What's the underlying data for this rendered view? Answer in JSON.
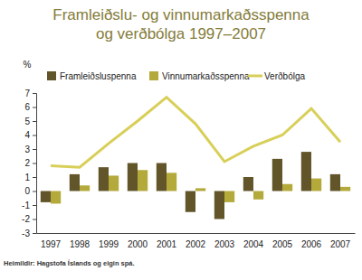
{
  "chart_data": {
    "type": "bar",
    "title": "Framleiðslu- og vinnumarkaðsspenna\nog verðbólga 1997–2007",
    "y_label": "%",
    "source": "Heimildir: Hagstofa Íslands og eigin spá.",
    "categories": [
      "1997",
      "1998",
      "1999",
      "2000",
      "2001",
      "2002",
      "2003",
      "2004",
      "2005",
      "2006",
      "2007"
    ],
    "series": [
      {
        "name": "Framleiðsluspenna",
        "type": "bar",
        "color": "#62552a",
        "values": [
          -0.8,
          1.2,
          1.7,
          2.0,
          2.0,
          -1.5,
          -2.0,
          1.0,
          2.3,
          2.8,
          1.2
        ]
      },
      {
        "name": "Vinnumarkaðsspenna",
        "type": "bar",
        "color": "#b4aa3c",
        "values": [
          -0.9,
          0.4,
          1.1,
          1.5,
          1.3,
          0.2,
          -0.8,
          -0.6,
          0.5,
          0.9,
          0.3
        ]
      },
      {
        "name": "Verðbólga",
        "type": "line",
        "color": "#d8cf58",
        "values": [
          1.8,
          1.7,
          3.4,
          5.0,
          6.7,
          4.8,
          2.1,
          3.2,
          4.0,
          5.9,
          3.5
        ]
      }
    ],
    "ylim": [
      -3,
      7
    ],
    "yticks": [
      -3,
      -2,
      -1,
      0,
      1,
      2,
      3,
      4,
      5,
      6,
      7
    ],
    "grid": false,
    "legend": "top"
  }
}
